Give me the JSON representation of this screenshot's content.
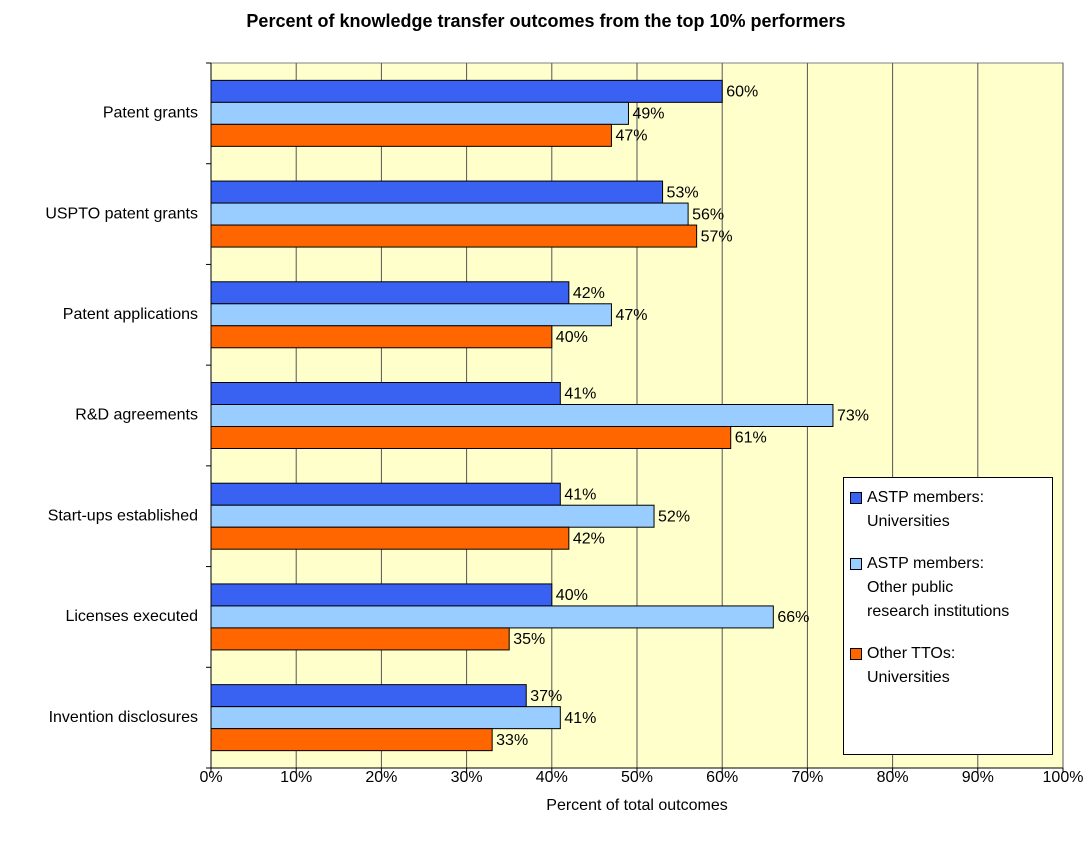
{
  "chart_data": {
    "type": "bar",
    "orientation": "horizontal",
    "title": "Percent of knowledge transfer outcomes from the top 10% performers",
    "x_label": "Percent of total outcomes",
    "categories": [
      "Patent grants",
      "USPTO patent grants",
      "Patent applications",
      "R&D agreements",
      "Start-ups established",
      "Licenses executed",
      "Invention disclosures"
    ],
    "series": [
      {
        "name": "ASTP members:\nUniversities",
        "color": "#3a62f2",
        "values": [
          60,
          53,
          42,
          41,
          41,
          40,
          37
        ],
        "value_labels": [
          "60%",
          "53%",
          "42%",
          "41%",
          "41%",
          "40%",
          "37%"
        ]
      },
      {
        "name": "ASTP members:\nOther public\nresearch institutions",
        "color": "#99ccff",
        "values": [
          49,
          56,
          47,
          73,
          52,
          66,
          41
        ],
        "value_labels": [
          "49%",
          "56%",
          "47%",
          "73%",
          "52%",
          "66%",
          "41%"
        ]
      },
      {
        "name": "Other TTOs:\nUniversities",
        "color": "#ff6600",
        "values": [
          47,
          57,
          40,
          61,
          42,
          35,
          33
        ],
        "value_labels": [
          "47%",
          "57%",
          "40%",
          "61%",
          "42%",
          "35%",
          "33%"
        ]
      }
    ],
    "xlim": [
      0,
      100
    ],
    "xticks": [
      {
        "value": 0,
        "label": "0%"
      },
      {
        "value": 10,
        "label": "10%"
      },
      {
        "value": 20,
        "label": "20%"
      },
      {
        "value": 30,
        "label": "30%"
      },
      {
        "value": 40,
        "label": "40%"
      },
      {
        "value": 50,
        "label": "50%"
      },
      {
        "value": 60,
        "label": "60%"
      },
      {
        "value": 70,
        "label": "70%"
      },
      {
        "value": 80,
        "label": "80%"
      },
      {
        "value": 90,
        "label": "90%"
      },
      {
        "value": 100,
        "label": "100%"
      }
    ],
    "grid": true,
    "legend": "right"
  }
}
